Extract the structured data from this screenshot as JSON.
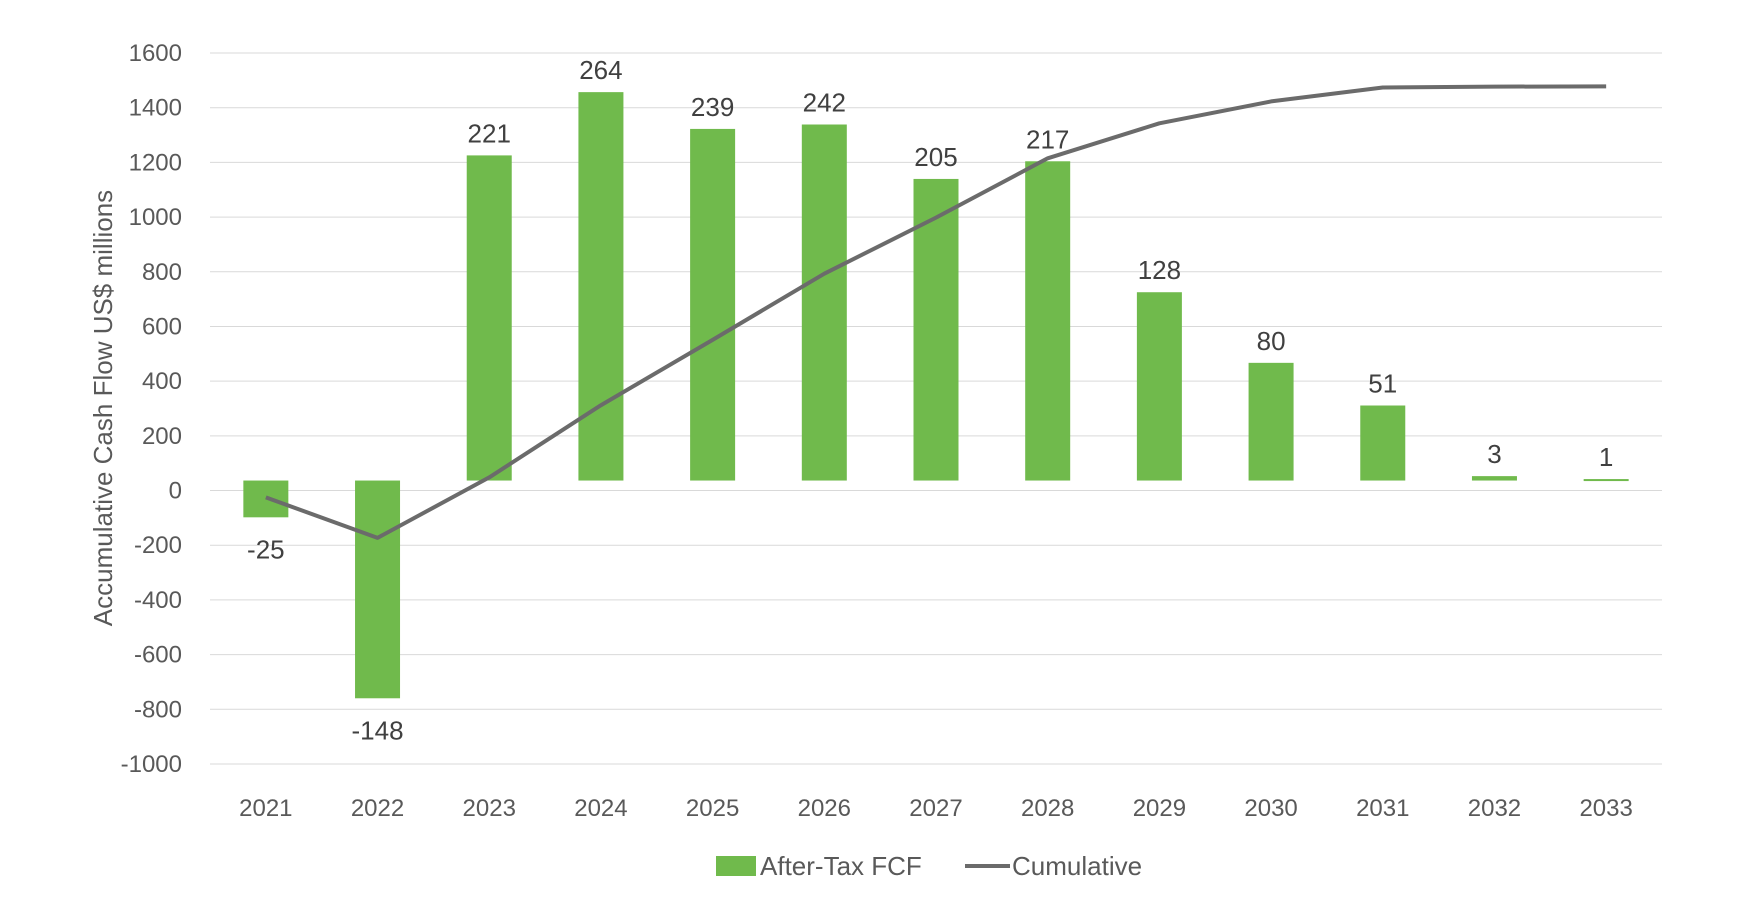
{
  "chart_data": {
    "type": "bar",
    "categories": [
      "2021",
      "2022",
      "2023",
      "2024",
      "2025",
      "2026",
      "2027",
      "2028",
      "2029",
      "2030",
      "2031",
      "2032",
      "2033"
    ],
    "series": [
      {
        "name": "After-Tax FCF",
        "type": "bar",
        "color": "#70ba4c",
        "values": [
          -25,
          -148,
          221,
          264,
          239,
          242,
          205,
          217,
          128,
          80,
          51,
          3,
          1
        ],
        "data_labels": [
          "-25",
          "-148",
          "221",
          "264",
          "239",
          "242",
          "205",
          "217",
          "128",
          "80",
          "51",
          "3",
          "1"
        ]
      },
      {
        "name": "Cumulative",
        "type": "line",
        "color": "#6b6b6b",
        "values": [
          -25,
          -173,
          48,
          312,
          551,
          793,
          998,
          1215,
          1343,
          1423,
          1474,
          1477,
          1478
        ]
      }
    ],
    "ylabel": "Accumulative Cash Flow US$ millions",
    "ylim": [
      -1000,
      1600
    ],
    "yticks": [
      -1000,
      -800,
      -600,
      -400,
      -200,
      0,
      200,
      400,
      600,
      800,
      1000,
      1200,
      1400,
      1600
    ],
    "grid": true,
    "legend_position": "bottom"
  }
}
